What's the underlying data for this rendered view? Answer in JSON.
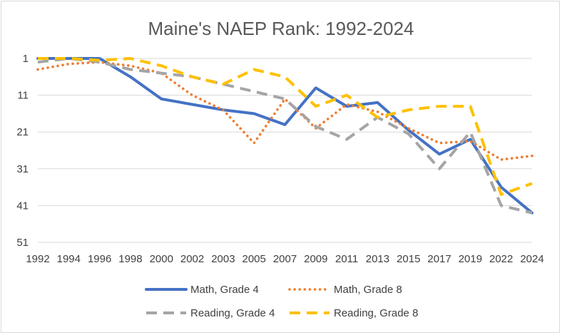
{
  "chart_data": {
    "type": "line",
    "title": "Maine's NAEP Rank: 1992-2024",
    "xlabel": "",
    "ylabel": "",
    "categories": [
      "1992",
      "1994",
      "1996",
      "1998",
      "2000",
      "2002",
      "2003",
      "2005",
      "2007",
      "2009",
      "2011",
      "2013",
      "2015",
      "2017",
      "2019",
      "2022",
      "2024"
    ],
    "yticks": [
      1,
      11,
      21,
      31,
      41,
      51
    ],
    "ylim": [
      51,
      1
    ],
    "y_inverted": true,
    "grid": true,
    "legend_position": "bottom",
    "series": [
      {
        "name": "Math, Grade 4",
        "style": "solid",
        "color": "#4472C4",
        "points": [
          [
            0,
            1
          ],
          [
            1,
            1
          ],
          [
            2,
            1
          ],
          [
            3,
            6
          ],
          [
            4,
            12
          ],
          [
            5,
            13.5
          ],
          [
            6,
            15
          ],
          [
            7,
            16
          ],
          [
            8,
            19
          ],
          [
            9,
            9
          ],
          [
            10,
            14
          ],
          [
            11,
            13
          ],
          [
            12,
            20.5
          ],
          [
            13,
            27
          ],
          [
            14,
            23
          ],
          [
            15,
            36
          ],
          [
            16,
            43
          ]
        ]
      },
      {
        "name": "Math, Grade 8",
        "style": "dotted",
        "color": "#ED7D31",
        "points": [
          [
            0,
            4
          ],
          [
            1,
            2.5
          ],
          [
            2,
            2
          ],
          [
            3,
            3
          ],
          [
            4,
            5
          ],
          [
            5,
            11
          ],
          [
            6,
            15
          ],
          [
            7,
            24
          ],
          [
            8,
            12
          ],
          [
            9,
            20
          ],
          [
            10,
            13.5
          ],
          [
            11,
            15.5
          ],
          [
            12,
            20
          ],
          [
            13,
            24
          ],
          [
            14,
            23.5
          ],
          [
            15,
            28.5
          ],
          [
            16,
            27.5
          ]
        ]
      },
      {
        "name": "Reading, Grade 4",
        "style": "dashed",
        "color": "#A5A5A5",
        "points": [
          [
            0,
            2
          ],
          [
            1,
            1
          ],
          [
            2,
            2
          ],
          [
            3,
            4
          ],
          [
            4,
            5
          ],
          [
            5,
            6
          ],
          [
            6,
            8
          ],
          [
            7,
            10
          ],
          [
            8,
            12
          ],
          [
            9,
            19.5
          ],
          [
            10,
            23
          ],
          [
            11,
            17
          ],
          [
            12,
            21.5
          ],
          [
            13,
            31
          ],
          [
            14,
            21
          ],
          [
            15,
            41
          ],
          [
            16,
            43
          ]
        ]
      },
      {
        "name": "Reading, Grade 8",
        "style": "dashed",
        "color": "#FFC000",
        "points": [
          [
            0,
            1
          ],
          [
            1,
            1
          ],
          [
            2,
            1.5
          ],
          [
            3,
            1
          ],
          [
            4,
            3
          ],
          [
            5,
            6
          ],
          [
            6,
            8
          ],
          [
            7,
            4
          ],
          [
            8,
            6
          ],
          [
            9,
            14
          ],
          [
            10,
            11
          ],
          [
            11,
            17
          ],
          [
            12,
            15
          ],
          [
            13,
            14
          ],
          [
            14,
            14
          ],
          [
            15,
            38
          ],
          [
            16,
            35
          ]
        ]
      }
    ]
  }
}
